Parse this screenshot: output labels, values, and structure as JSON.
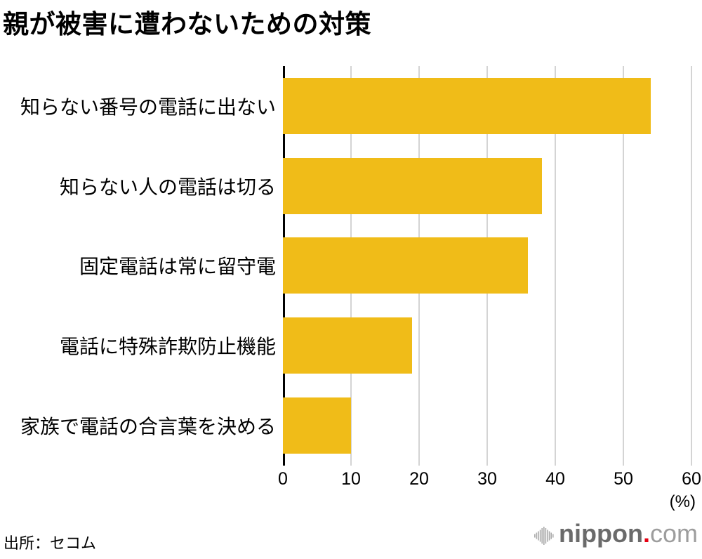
{
  "page": {
    "title": "親が被害に遭わないための対策",
    "source": "出所：セコム"
  },
  "logo": {
    "icon": "soundwave-icon",
    "name_bold": "nippon",
    "dot": ".",
    "name_light": "com"
  },
  "colors": {
    "bar": "#F0BC18",
    "gridline": "#D4D4D4",
    "axis": "#000000",
    "title_text": "#000000",
    "logo_gray": "#6B6B6B",
    "logo_light_gray": "#9D9D9D",
    "logo_red": "#E60012",
    "logo_icon_gray": "#ABABAB"
  },
  "chart_data": {
    "type": "bar",
    "orientation": "horizontal",
    "title": "親が被害に遭わないための対策",
    "categories": [
      "知らない番号の電話に出ない",
      "知らない人の電話は切る",
      "固定電話は常に留守電",
      "電話に特殊詐欺防止機能",
      "家族で電話の合言葉を決める"
    ],
    "values": [
      54,
      38,
      36,
      19,
      10
    ],
    "xlim": [
      0,
      60
    ],
    "xticks": [
      0,
      10,
      20,
      30,
      40,
      50,
      60
    ],
    "unit_label": "(%)",
    "xlabel": "",
    "ylabel": "",
    "grid": "vertical",
    "legend": "none",
    "source": "出所：セコム"
  }
}
